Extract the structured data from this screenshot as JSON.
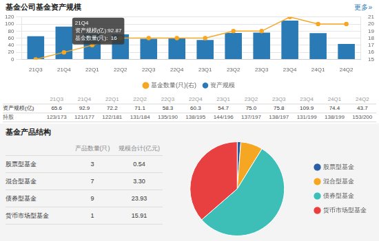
{
  "chart_data": [
    {
      "type": "bar",
      "title": "基金公司基金资产规模",
      "subtitle": "更多»",
      "categories": [
        "21Q3",
        "21Q4",
        "22Q1",
        "22Q2",
        "22Q3",
        "22Q4",
        "23Q1",
        "23Q2",
        "23Q3",
        "23Q4",
        "24Q1",
        "24Q2"
      ],
      "series": [
        {
          "name": "资产规模",
          "type": "bar",
          "color": "#2a7ab5",
          "values": [
            65.6,
            92.9,
            72.2,
            71.1,
            58.3,
            60.3,
            54.7,
            75.0,
            75.8,
            109.9,
            74.4,
            43.7
          ]
        },
        {
          "name": "基金数量(只)(右)",
          "type": "line",
          "color": "#f5a623",
          "marker": "circle",
          "axis": "y2",
          "values": [
            15,
            16,
            17,
            18,
            18,
            18,
            18,
            19,
            19,
            21,
            20,
            20
          ]
        }
      ],
      "ylim": [
        0,
        120
      ],
      "yticks": [
        0,
        20,
        40,
        60,
        80,
        100,
        120
      ],
      "y2lim": [
        15,
        21
      ],
      "y2ticks": [
        15,
        16,
        17,
        18,
        19,
        20,
        21
      ],
      "grid": true,
      "legend": "bottom",
      "annotations": [
        {
          "category": "21Q4",
          "text": [
            "21Q4",
            "资产规模(亿):92.87",
            "基金数量(只):  16"
          ]
        }
      ],
      "table": {
        "headers": [
          "21Q3",
          "21Q4",
          "22Q1",
          "22Q2",
          "22Q3",
          "22Q4",
          "23Q1",
          "23Q2",
          "23Q3",
          "23Q4",
          "24Q1",
          "24Q2"
        ],
        "rows": [
          {
            "label": "资产规模(亿)",
            "values": [
              "65.6",
              "92.9",
              "72.2",
              "71.1",
              "58.3",
              "60.3",
              "54.7",
              "75.0",
              "75.8",
              "109.9",
              "74.4",
              "43.7"
            ]
          },
          {
            "label": "持股",
            "values": [
              "123/173",
              "121/177",
              "122/181",
              "131/184",
              "135/190",
              "138/195",
              "144/196",
              "137/197",
              "138/197",
              "131/199",
              "138/199",
              "153/200"
            ]
          }
        ]
      }
    },
    {
      "type": "pie",
      "title": "基金产品结构",
      "categories": [
        "股票型基金",
        "混合型基金",
        "债券型基金",
        "货币市场型基金"
      ],
      "values": [
        0.54,
        3.3,
        23.93,
        15.91
      ],
      "value_labels": [
        "0.54",
        "3.30",
        "23.93",
        "15.91"
      ],
      "counts": [
        3,
        7,
        9,
        1
      ],
      "colors": [
        "#2a5fa5",
        "#f5a623",
        "#3dbfb8",
        "#e84040"
      ],
      "table_headers": [
        "产品数量(只)",
        "规模合计(亿元)"
      ],
      "legend": "right"
    }
  ]
}
